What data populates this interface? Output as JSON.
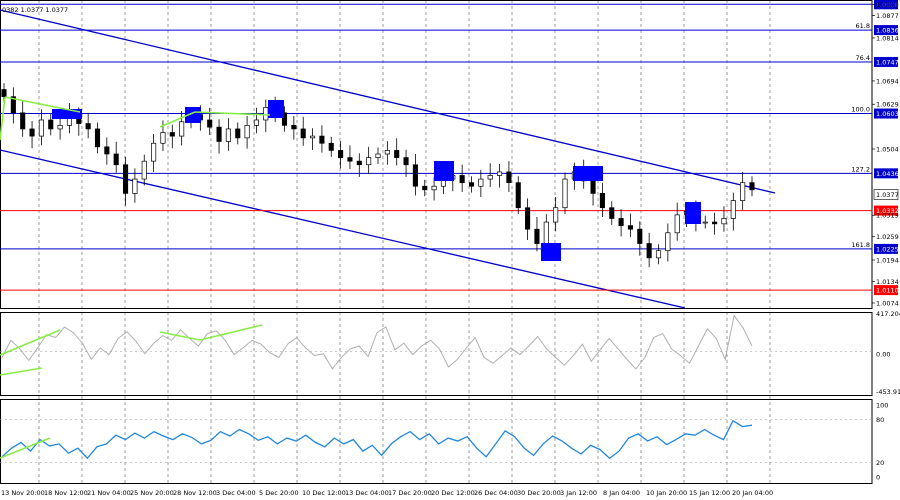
{
  "header": {
    "ohlc_text": "0382 1.0377 1.0377"
  },
  "colors": {
    "background": "#ffffff",
    "candle": "#000000",
    "grid": "#000000",
    "fib_level": "#0000cc",
    "red_level": "#ff0000",
    "channel": "#0000cc",
    "marker": "#0000ff",
    "divergence": "#88ee44",
    "cci": "#b0b0b0",
    "rsi": "#2288dd"
  },
  "chart_data": [
    {
      "type": "candlestick",
      "panel": "price",
      "ylim": [
        1.006,
        1.092
      ],
      "grid": true,
      "x_tick_labels": [
        "13 Nov 20:00",
        "18 Nov 12:00",
        "21 Nov 04:00",
        "25 Nov 20:00",
        "28 Nov 12:00",
        "3 Dec 04:00",
        "5 Dec 20:00",
        "10 Dec 12:00",
        "13 Dec 04:00",
        "17 Dec 20:00",
        "20 Dec 12:00",
        "26 Dec 04:00",
        "30 Dec 20:00",
        "3 Jan 12:00",
        "8 Jan 04:00",
        "10 Jan 20:00",
        "15 Jan 12:00",
        "20 Jan 04:00"
      ],
      "y_tick_labels": [
        1.0908,
        1.0877,
        1.0814,
        1.0694,
        1.0629,
        1.0504,
        1.0319,
        1.0259,
        1.0194,
        1.0134,
        1.0074
      ],
      "levels": [
        {
          "value": 1.0908,
          "label": "1.0908",
          "fib": "",
          "color": "#0000cc"
        },
        {
          "value": 1.0836,
          "label": "1.0836",
          "fib": "61.8",
          "color": "#0000cc"
        },
        {
          "value": 1.0747,
          "label": "1.0747",
          "fib": "76.4",
          "color": "#0000cc"
        },
        {
          "value": 1.0603,
          "label": "1.0603",
          "fib": "100.0",
          "color": "#0000cc"
        },
        {
          "value": 1.0436,
          "label": "1.0436",
          "fib": "127.2",
          "color": "#0000cc"
        },
        {
          "value": 1.0332,
          "label": "1.0332",
          "fib": "",
          "color": "#ff0000"
        },
        {
          "value": 1.0225,
          "label": "1.0225",
          "fib": "161.8",
          "color": "#0000cc"
        },
        {
          "value": 1.011,
          "label": "1.0110",
          "fib": "",
          "color": "#ff0000"
        }
      ],
      "current_price": {
        "value": 1.0377,
        "label": "1.0377"
      },
      "close_series": [
        1.065,
        1.0605,
        1.056,
        1.054,
        1.0585,
        1.056,
        1.057,
        1.0598,
        1.0575,
        1.056,
        1.051,
        1.049,
        1.046,
        1.038,
        1.042,
        1.047,
        1.052,
        1.055,
        1.054,
        1.058,
        1.06,
        1.0585,
        1.0565,
        1.0525,
        1.056,
        1.0535,
        1.057,
        1.0585,
        1.062,
        1.0605,
        1.057,
        1.056,
        1.0535,
        1.054,
        1.052,
        1.05,
        1.048,
        1.047,
        1.046,
        1.048,
        1.049,
        1.05,
        1.048,
        1.046,
        1.04,
        1.039,
        1.04,
        1.042,
        1.043,
        1.041,
        1.04,
        1.042,
        1.043,
        1.044,
        1.041,
        1.034,
        1.028,
        1.024,
        1.03,
        1.034,
        1.042,
        1.044,
        1.0415,
        1.038,
        1.034,
        1.031,
        1.029,
        1.028,
        1.024,
        1.02,
        1.022,
        1.027,
        1.032,
        1.033,
        1.03,
        1.03,
        1.0295,
        1.031,
        1.036,
        1.041,
        1.039
      ]
    },
    {
      "type": "line",
      "panel": "oscillator-1",
      "name": "",
      "ylim": [
        -453.913,
        417.2044
      ],
      "y_tick_labels": [
        "417.2044",
        "0.00",
        "-453.913"
      ],
      "values": [
        -60,
        120,
        30,
        -90,
        40,
        180,
        150,
        260,
        200,
        90,
        -80,
        40,
        -30,
        140,
        210,
        110,
        -20,
        90,
        170,
        120,
        230,
        140,
        60,
        190,
        220,
        120,
        -30,
        40,
        120,
        80,
        -10,
        -60,
        80,
        150,
        40,
        -40,
        -20,
        -180,
        -60,
        30,
        60,
        -50,
        200,
        260,
        20,
        90,
        -30,
        60,
        120,
        30,
        -160,
        -80,
        40,
        150,
        -60,
        -120,
        -40,
        40,
        -30,
        60,
        160,
        30,
        -60,
        -140,
        -40,
        80,
        -100,
        20,
        140,
        30,
        -80,
        -180,
        -60,
        150,
        190,
        30,
        -40,
        -120,
        60,
        240,
        140,
        -80,
        380,
        250,
        60
      ]
    },
    {
      "type": "line",
      "panel": "oscillator-2",
      "name": "",
      "ylim": [
        0,
        100
      ],
      "y_tick_labels": [
        "100",
        "80",
        "20",
        "0"
      ],
      "values": [
        28,
        40,
        48,
        36,
        52,
        43,
        46,
        33,
        40,
        26,
        42,
        46,
        58,
        52,
        61,
        54,
        63,
        57,
        52,
        60,
        55,
        46,
        51,
        63,
        57,
        66,
        60,
        51,
        56,
        46,
        54,
        50,
        58,
        48,
        42,
        54,
        46,
        52,
        36,
        44,
        30,
        46,
        56,
        63,
        52,
        60,
        46,
        54,
        50,
        56,
        40,
        28,
        46,
        64,
        56,
        40,
        30,
        46,
        57,
        50,
        40,
        32,
        44,
        38,
        26,
        36,
        54,
        60,
        50,
        56,
        45,
        52,
        60,
        58,
        66,
        58,
        52,
        78,
        70,
        72
      ]
    }
  ]
}
